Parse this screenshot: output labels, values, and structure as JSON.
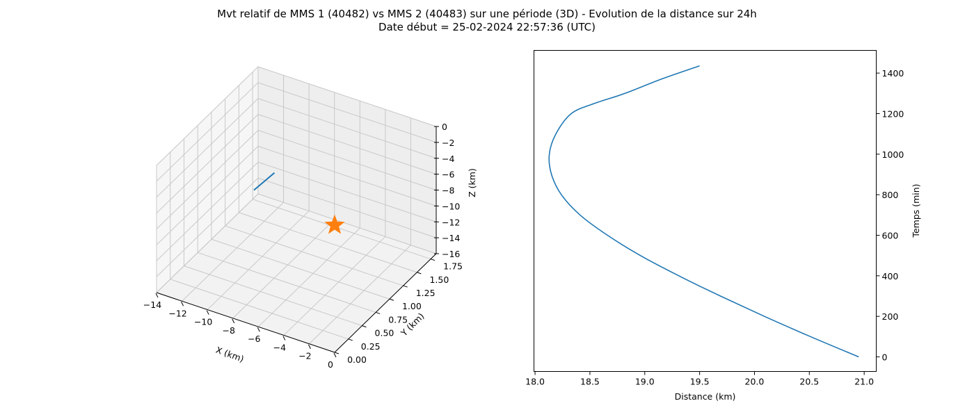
{
  "figure": {
    "title_line1": "Mvt relatif de MMS 1 (40482) vs MMS 2 (40483) sur une période (3D) - Evolution de la distance sur 24h",
    "title_line2": "Date début = 25-02-2024 22:57:36 (UTC)"
  },
  "colors": {
    "series": "#1f77b4",
    "marker": "#ff7f0e",
    "grid": "#c8c8c8",
    "pane": "#f0f0f0"
  },
  "chart_data": [
    {
      "type": "line3d",
      "xlabel": "X (km)",
      "ylabel": "Y (km)",
      "zlabel": "Z (km)",
      "xlim": [
        -14,
        0
      ],
      "ylim": [
        0,
        1.85
      ],
      "zlim": [
        -16,
        0
      ],
      "xticks": [
        "−14",
        "−12",
        "−10",
        "−8",
        "−6",
        "−4",
        "−2",
        "0"
      ],
      "yticks": [
        "0.00",
        "0.25",
        "0.50",
        "0.75",
        "1.00",
        "1.25",
        "1.50",
        "1.75"
      ],
      "zticks": [
        "0",
        "−2",
        "−4",
        "−6",
        "−8",
        "−10",
        "−12",
        "−14",
        "−16"
      ],
      "grid": true,
      "series": [
        {
          "x": [
            -13.9,
            -12.5
          ],
          "y": [
            1.75,
            1.8
          ],
          "z": [
            -14.8,
            -12.2
          ]
        }
      ],
      "marker": {
        "x": 0,
        "y": 0,
        "z": 0,
        "shape": "star"
      }
    },
    {
      "type": "line",
      "xlabel": "Distance (km)",
      "ylabel": "Temps (min)",
      "xlim": [
        17.99,
        21.11
      ],
      "ylim": [
        -72,
        1512
      ],
      "xticks": [
        "18.0",
        "18.5",
        "19.0",
        "19.5",
        "20.0",
        "20.5",
        "21.0"
      ],
      "yticks": [
        "0",
        "200",
        "400",
        "600",
        "800",
        "1000",
        "1200",
        "1400"
      ],
      "ytick_side": "right",
      "series": [
        {
          "x": [
            20.95,
            20.51,
            20.09,
            19.69,
            19.31,
            18.96,
            18.66,
            18.41,
            18.24,
            18.15,
            18.13,
            18.19,
            18.33,
            18.54,
            18.82,
            19.15,
            19.5
          ],
          "y": [
            0,
            100,
            200,
            300,
            400,
            500,
            600,
            700,
            800,
            900,
            1000,
            1100,
            1200,
            1250,
            1300,
            1370,
            1436
          ]
        }
      ]
    }
  ]
}
